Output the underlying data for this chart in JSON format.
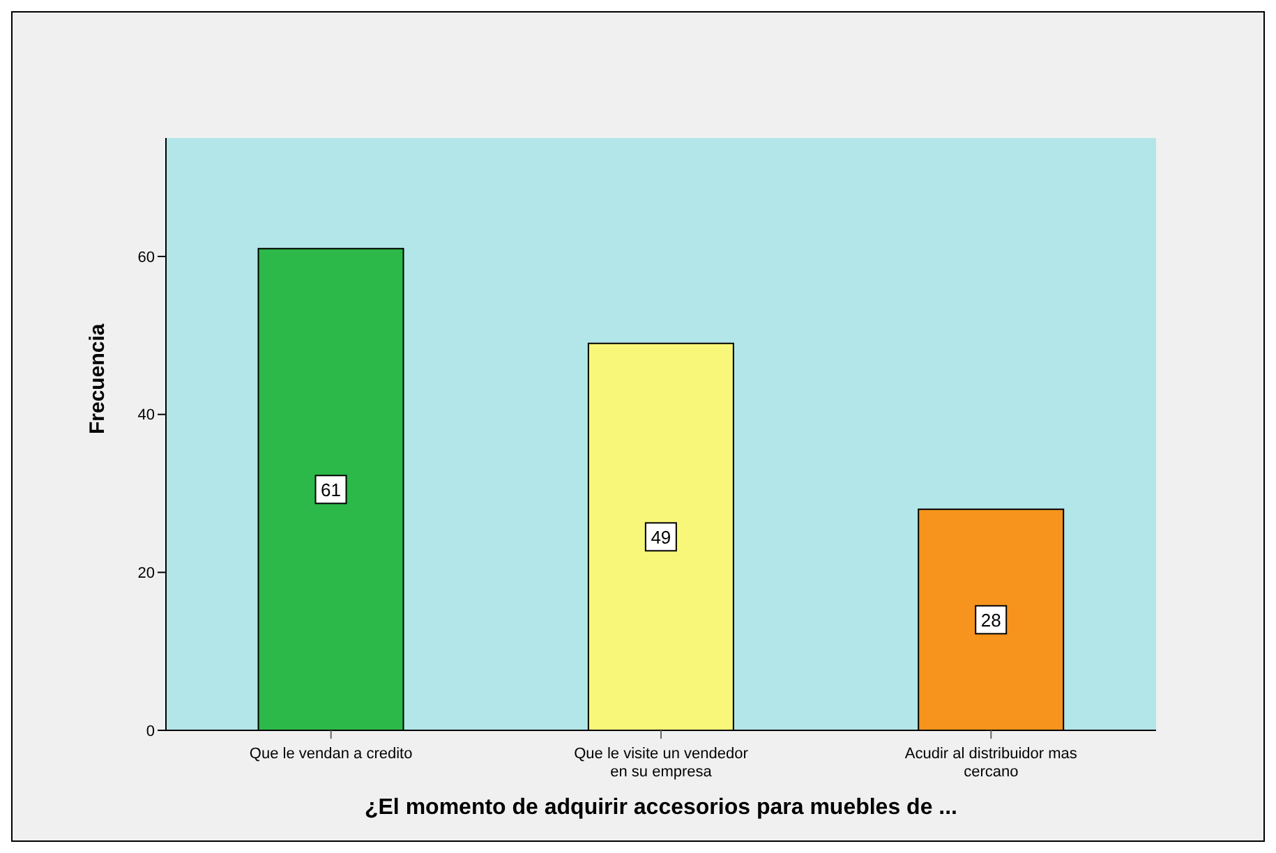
{
  "chart_data": {
    "type": "bar",
    "xlabel": "¿El momento de adquirir accesorios para muebles de ...",
    "ylabel": "Frecuencia",
    "categories": [
      "Que le vendan a credito",
      "Que le visite un vendedor en su empresa",
      "Acudir al distribuidor mas cercano"
    ],
    "values": [
      61,
      49,
      28
    ],
    "colors": [
      "#2db84a",
      "#f8f77a",
      "#f7941d"
    ],
    "ylim": [
      0,
      75
    ],
    "yticks": [
      0,
      20,
      40,
      60
    ],
    "data_labels": true
  }
}
